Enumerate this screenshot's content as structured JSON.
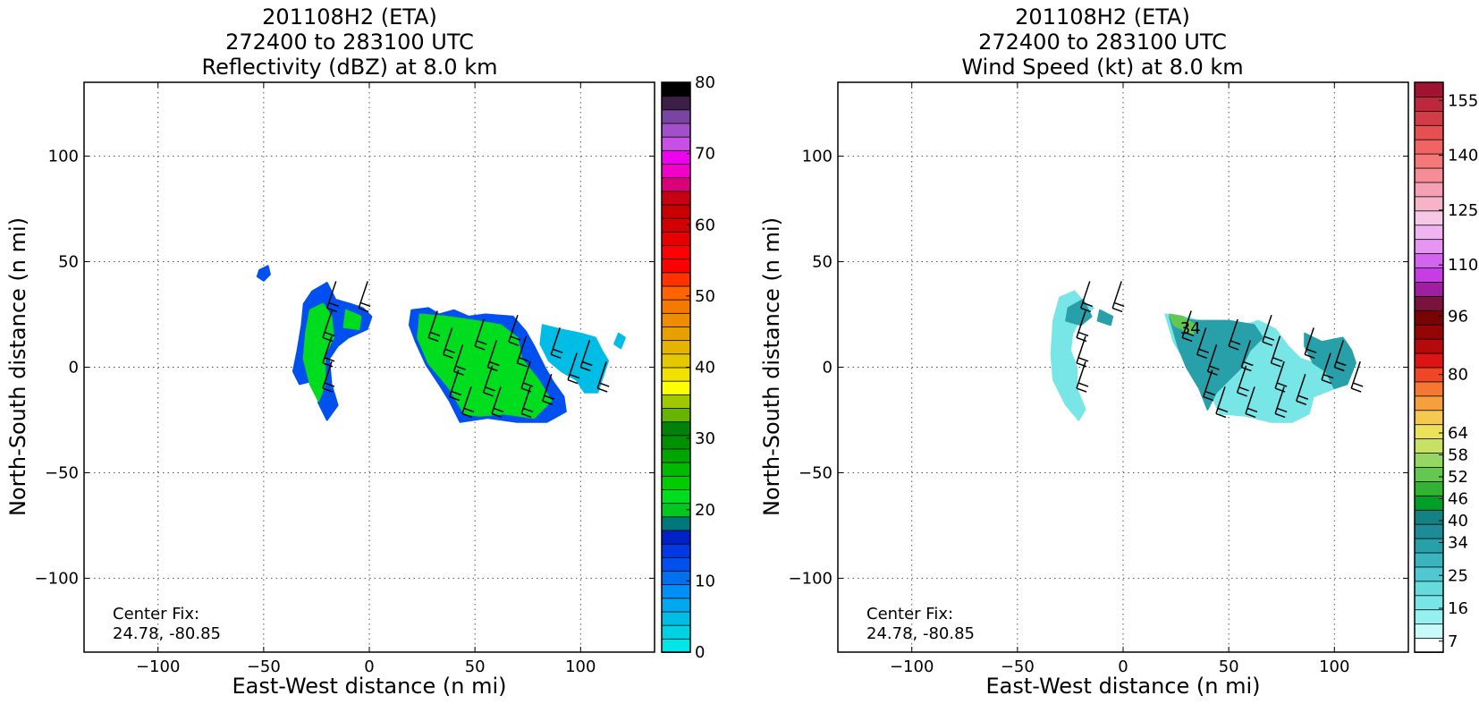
{
  "chart_data": [
    {
      "type": "heatmap",
      "title_lines": [
        "201108H2 (ETA)",
        "272400 to 283100 UTC",
        "Reflectivity (dBZ) at 8.0 km"
      ],
      "xlabel": "East-West distance (n mi)",
      "ylabel": "North-South distance (n mi)",
      "xlim": [
        -135,
        135
      ],
      "ylim": [
        -135,
        135
      ],
      "xticks": [
        -100,
        -50,
        0,
        50,
        100
      ],
      "yticks": [
        -100,
        -50,
        0,
        50,
        100
      ],
      "grid": true,
      "annotation": [
        "Center Fix:",
        "24.78, -80.85"
      ],
      "colorbar": {
        "vmin": 0,
        "vmax": 80,
        "step": 2.5,
        "ticks": [
          0,
          10,
          20,
          30,
          40,
          50,
          60,
          70,
          80
        ],
        "colors": [
          "#00e6e6",
          "#00d2e6",
          "#00bde6",
          "#00a8f0",
          "#0090f5",
          "#0070f0",
          "#0050f0",
          "#0038e6",
          "#0020c8",
          "#00787a",
          "#00c81e",
          "#00dc1e",
          "#00cd00",
          "#00b900",
          "#00a500",
          "#009100",
          "#00820a",
          "#64b400",
          "#a0c800",
          "#ffff00",
          "#f0e100",
          "#e6c800",
          "#e6b400",
          "#e6a000",
          "#f08c00",
          "#f57800",
          "#ff6400",
          "#ff3200",
          "#ff0000",
          "#ff0000",
          "#e60000",
          "#d20000",
          "#c80000",
          "#c80014",
          "#dc0078",
          "#f000c8",
          "#f000f0",
          "#c850e6",
          "#a050c8",
          "#7846a0",
          "#3c1e46",
          "#000000"
        ]
      },
      "echo_regions": [
        {
          "points": [
            [
              -52,
              46
            ],
            [
              -48,
              48
            ],
            [
              -47,
              44
            ],
            [
              -50,
              41
            ],
            [
              -53,
              43
            ]
          ],
          "band": "blue"
        },
        {
          "points": [
            [
              -27,
              36
            ],
            [
              -20,
              40
            ],
            [
              -16,
              32
            ],
            [
              -9,
              30
            ],
            [
              -3,
              28
            ],
            [
              1,
              24
            ],
            [
              -1,
              18
            ],
            [
              -10,
              14
            ],
            [
              -15,
              10
            ],
            [
              -19,
              4
            ],
            [
              -18,
              -8
            ],
            [
              -15,
              -18
            ],
            [
              -20,
              -25
            ],
            [
              -24,
              -17
            ],
            [
              -25,
              -6
            ],
            [
              -33,
              -8
            ],
            [
              -36,
              -2
            ],
            [
              -34,
              8
            ],
            [
              -32,
              20
            ],
            [
              -31,
              30
            ]
          ],
          "band": "blue"
        },
        {
          "points": [
            [
              20,
              27
            ],
            [
              28,
              28
            ],
            [
              33,
              25
            ],
            [
              40,
              27
            ],
            [
              47,
              24
            ],
            [
              55,
              25
            ],
            [
              68,
              24
            ],
            [
              74,
              17
            ],
            [
              78,
              10
            ],
            [
              83,
              0
            ],
            [
              87,
              -7
            ],
            [
              92,
              -14
            ],
            [
              93,
              -21
            ],
            [
              84,
              -26
            ],
            [
              70,
              -26
            ],
            [
              56,
              -24
            ],
            [
              43,
              -26
            ],
            [
              38,
              -16
            ],
            [
              33,
              -8
            ],
            [
              27,
              1
            ],
            [
              22,
              12
            ],
            [
              19,
              20
            ]
          ],
          "band": "blue"
        },
        {
          "points": [
            [
              82,
              20
            ],
            [
              90,
              18
            ],
            [
              100,
              16
            ],
            [
              107,
              14
            ],
            [
              110,
              8
            ],
            [
              113,
              3
            ],
            [
              111,
              -3
            ],
            [
              108,
              -12
            ],
            [
              102,
              -12
            ],
            [
              98,
              -6
            ],
            [
              91,
              -2
            ],
            [
              85,
              3
            ],
            [
              81,
              11
            ]
          ],
          "band": "cyan"
        },
        {
          "points": [
            [
              118,
              16
            ],
            [
              121,
              14
            ],
            [
              119,
              9
            ],
            [
              116,
              11
            ]
          ],
          "band": "cyan"
        }
      ],
      "core_regions": [
        {
          "points": [
            [
              -28,
              27
            ],
            [
              -22,
              30
            ],
            [
              -18,
              24
            ],
            [
              -17,
              14
            ],
            [
              -21,
              6
            ],
            [
              -21,
              -8
            ],
            [
              -24,
              -16
            ],
            [
              -28,
              -8
            ],
            [
              -31,
              4
            ],
            [
              -30,
              16
            ]
          ],
          "band": "green"
        },
        {
          "points": [
            [
              -11,
              27
            ],
            [
              -4,
              24
            ],
            [
              -5,
              18
            ],
            [
              -12,
              19
            ]
          ],
          "band": "green"
        },
        {
          "points": [
            [
              24,
              25
            ],
            [
              36,
              24
            ],
            [
              50,
              22
            ],
            [
              62,
              20
            ],
            [
              70,
              14
            ],
            [
              72,
              4
            ],
            [
              80,
              -6
            ],
            [
              86,
              -16
            ],
            [
              78,
              -24
            ],
            [
              64,
              -22
            ],
            [
              52,
              -23
            ],
            [
              45,
              -22
            ],
            [
              38,
              -10
            ],
            [
              28,
              2
            ],
            [
              23,
              14
            ]
          ],
          "band": "green"
        }
      ],
      "wind_barbs": [
        [
          -20,
          28
        ],
        [
          -5,
          28
        ],
        [
          -22,
          14
        ],
        [
          -22,
          2
        ],
        [
          -22,
          -10
        ],
        [
          28,
          14
        ],
        [
          35,
          6
        ],
        [
          40,
          -2
        ],
        [
          38,
          -14
        ],
        [
          44,
          -22
        ],
        [
          50,
          10
        ],
        [
          56,
          0
        ],
        [
          54,
          -12
        ],
        [
          58,
          -22
        ],
        [
          66,
          12
        ],
        [
          70,
          2
        ],
        [
          72,
          -10
        ],
        [
          72,
          -22
        ],
        [
          82,
          -16
        ],
        [
          86,
          6
        ],
        [
          94,
          -6
        ],
        [
          100,
          0
        ],
        [
          108,
          -10
        ]
      ]
    },
    {
      "type": "heatmap",
      "title_lines": [
        "201108H2 (ETA)",
        "272400 to 283100 UTC",
        "Wind Speed (kt) at 8.0 km"
      ],
      "xlabel": "East-West distance (n mi)",
      "ylabel": "North-South distance (n mi)",
      "xlim": [
        -135,
        135
      ],
      "ylim": [
        -135,
        135
      ],
      "xticks": [
        -100,
        -50,
        0,
        50,
        100
      ],
      "yticks": [
        -100,
        -50,
        0,
        50,
        100
      ],
      "grid": true,
      "annotation": [
        "Center Fix:",
        "24.78, -80.85"
      ],
      "data_label": "34",
      "colorbar": {
        "vmin": 4,
        "vmax": 160,
        "ticks": [
          7,
          16,
          25,
          34,
          40,
          46,
          52,
          58,
          64,
          80,
          96,
          110,
          125,
          140,
          155
        ],
        "colors": [
          "#ffffff",
          "#c8fafa",
          "#96f0f0",
          "#78e6e6",
          "#64dcdc",
          "#50c8d2",
          "#3cb4be",
          "#28a0aa",
          "#1e8c96",
          "#148282",
          "#00a028",
          "#32b432",
          "#64c850",
          "#96d764",
          "#c8e164",
          "#ebe15a",
          "#f5c850",
          "#f5a03c",
          "#f57832",
          "#f04628",
          "#dc1414",
          "#b40a0a",
          "#960505",
          "#780505",
          "#78143c",
          "#a01ea0",
          "#c83ce6",
          "#d264f0",
          "#e696f0",
          "#f0b4f0",
          "#f5c8e6",
          "#f5b4c8",
          "#f5a0b4",
          "#f58c96",
          "#f57878",
          "#f06464",
          "#e65050",
          "#d23c46",
          "#be283c",
          "#a01432"
        ]
      },
      "wind_regions": [
        {
          "points": [
            [
              -33,
              22
            ],
            [
              -30,
              33
            ],
            [
              -23,
              36
            ],
            [
              -18,
              30
            ],
            [
              -14,
              28
            ],
            [
              -20,
              24
            ],
            [
              -24,
              16
            ],
            [
              -25,
              8
            ],
            [
              -22,
              0
            ],
            [
              -22,
              -10
            ],
            [
              -18,
              -20
            ],
            [
              -21,
              -25
            ],
            [
              -27,
              -18
            ],
            [
              -33,
              -6
            ],
            [
              -34,
              6
            ]
          ],
          "band": "light"
        },
        {
          "points": [
            [
              -26,
              28
            ],
            [
              -19,
              32
            ],
            [
              -15,
              24
            ],
            [
              -20,
              20
            ],
            [
              -27,
              22
            ]
          ],
          "band": "mid"
        },
        {
          "points": [
            [
              -11,
              27
            ],
            [
              -5,
              24
            ],
            [
              -6,
              20
            ],
            [
              -12,
              22
            ]
          ],
          "band": "mid"
        },
        {
          "points": [
            [
              20,
              25
            ],
            [
              28,
              24
            ],
            [
              36,
              22
            ],
            [
              48,
              22
            ],
            [
              58,
              20
            ],
            [
              64,
              22
            ],
            [
              72,
              18
            ],
            [
              78,
              10
            ],
            [
              84,
              4
            ],
            [
              90,
              2
            ],
            [
              96,
              -2
            ],
            [
              100,
              -10
            ],
            [
              90,
              -14
            ],
            [
              88,
              -22
            ],
            [
              80,
              -26
            ],
            [
              70,
              -26
            ],
            [
              58,
              -23
            ],
            [
              46,
              -22
            ],
            [
              40,
              -10
            ],
            [
              30,
              2
            ],
            [
              24,
              12
            ]
          ],
          "band": "light"
        },
        {
          "points": [
            [
              22,
              24
            ],
            [
              34,
              22
            ],
            [
              50,
              22
            ],
            [
              62,
              20
            ],
            [
              66,
              14
            ],
            [
              60,
              8
            ],
            [
              56,
              0
            ],
            [
              50,
              -6
            ],
            [
              44,
              -12
            ],
            [
              40,
              -20
            ],
            [
              36,
              -10
            ],
            [
              30,
              0
            ],
            [
              26,
              10
            ]
          ],
          "band": "mid"
        },
        {
          "points": [
            [
              22,
              25
            ],
            [
              28,
              24
            ],
            [
              34,
              20
            ],
            [
              33,
              16
            ],
            [
              28,
              18
            ],
            [
              24,
              20
            ]
          ],
          "band": "strong"
        },
        {
          "points": [
            [
              86,
              16
            ],
            [
              94,
              12
            ],
            [
              104,
              14
            ],
            [
              108,
              8
            ],
            [
              110,
              2
            ],
            [
              106,
              -8
            ],
            [
              100,
              -10
            ],
            [
              96,
              -2
            ],
            [
              90,
              2
            ],
            [
              86,
              10
            ]
          ],
          "band": "mid"
        }
      ],
      "wind_barbs": [
        [
          -20,
          28
        ],
        [
          -5,
          28
        ],
        [
          -22,
          14
        ],
        [
          -22,
          2
        ],
        [
          -22,
          -10
        ],
        [
          28,
          14
        ],
        [
          35,
          6
        ],
        [
          40,
          -2
        ],
        [
          38,
          -14
        ],
        [
          44,
          -22
        ],
        [
          50,
          10
        ],
        [
          56,
          0
        ],
        [
          54,
          -12
        ],
        [
          58,
          -22
        ],
        [
          66,
          12
        ],
        [
          70,
          2
        ],
        [
          72,
          -10
        ],
        [
          72,
          -22
        ],
        [
          82,
          -16
        ],
        [
          86,
          6
        ],
        [
          94,
          -6
        ],
        [
          100,
          0
        ],
        [
          108,
          -10
        ]
      ]
    }
  ]
}
